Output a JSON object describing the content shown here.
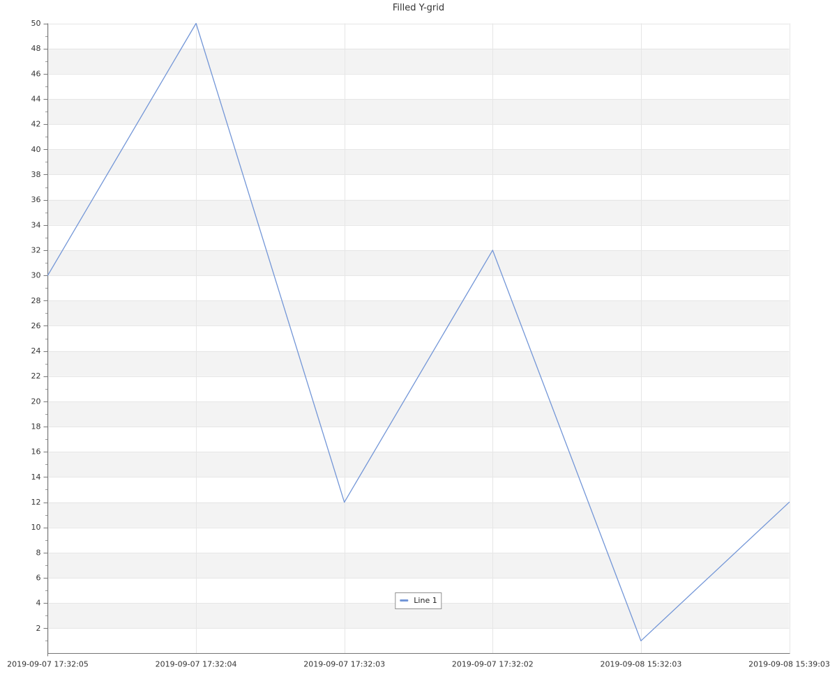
{
  "page": {
    "background": "#ffffff"
  },
  "chart_data": {
    "type": "line",
    "title": "Filled Y-grid",
    "categories": [
      "2019-09-07 17:32:05",
      "2019-09-07 17:32:04",
      "2019-09-07 17:32:03",
      "2019-09-07 17:32:02",
      "2019-09-08 15:32:03",
      "2019-09-08 15:39:03"
    ],
    "series": [
      {
        "name": "Line 1",
        "color": "#7396d7",
        "values": [
          30,
          50,
          12,
          32,
          1,
          12
        ]
      }
    ],
    "xlabel": "",
    "ylabel": "",
    "ylim": [
      0,
      50
    ],
    "y_ticks": [
      2,
      4,
      6,
      8,
      10,
      12,
      14,
      16,
      18,
      20,
      22,
      24,
      26,
      28,
      30,
      32,
      34,
      36,
      38,
      40,
      42,
      44,
      46,
      48,
      50
    ],
    "y_minor_tick_step": 1,
    "grid": "on",
    "alternating_band_intervals": [
      [
        2,
        4
      ],
      [
        6,
        8
      ],
      [
        10,
        12
      ],
      [
        14,
        16
      ],
      [
        18,
        20
      ],
      [
        22,
        24
      ],
      [
        26,
        28
      ],
      [
        30,
        32
      ],
      [
        34,
        36
      ],
      [
        38,
        40
      ],
      [
        42,
        44
      ],
      [
        46,
        48
      ]
    ],
    "band_fill_color": "#f3f3f3",
    "gridline_color": "#e6e6e6",
    "axis_color": "#757575",
    "tick_label_color": "#333333",
    "title_color": "#333333",
    "legend": {
      "position": "bottom-center",
      "border_color": "#909090",
      "background": "#ffffff",
      "items": [
        {
          "label": "Line 1",
          "color": "#7396d7"
        }
      ]
    }
  }
}
